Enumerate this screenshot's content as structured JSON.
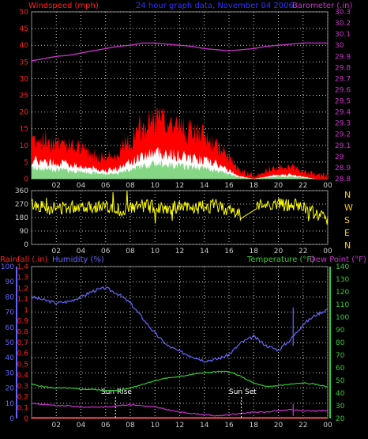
{
  "colors": {
    "background": "#000000",
    "grid": "#cccccc",
    "windspeed": "#ff2020",
    "gust_fill": "#ff0000",
    "avg_fill": "#ffffff",
    "windspeed_core": "#66cc66",
    "barometer": "#cc33cc",
    "title": "#3333ff",
    "direction": "#ffff00",
    "rainfall": "#ff2020",
    "humidity": "#6666ff",
    "temperature": "#33cc33",
    "dewpoint": "#cc33cc",
    "compass": "#ffcc00",
    "sun_marker": "#ffffff"
  },
  "header": {
    "windspeed_label": "Windspeed (mph)",
    "title": "24 hour graph data, November 04 2006",
    "barometer_label": "Barometer (.in)"
  },
  "lower_header": {
    "rainfall_label": "Rainfall (.in)",
    "humidity_label": "Humidity (%)",
    "temperature_label": "Temperature (°F)",
    "dewpoint_label": "Dew Point (°F)"
  },
  "compass": [
    "N",
    "W",
    "S",
    "E",
    "N"
  ],
  "markers": {
    "sunrise": "Sun Rise",
    "sunset": "Sun Set"
  },
  "chart_data": [
    {
      "type": "area",
      "name": "wind-barometer",
      "x_ticks": [
        "02",
        "04",
        "06",
        "08",
        "10",
        "12",
        "14",
        "16",
        "18",
        "20",
        "22",
        "00"
      ],
      "y_left_ticks": [
        "0",
        "5",
        "10",
        "15",
        "20",
        "25",
        "30",
        "35",
        "40",
        "45",
        "50"
      ],
      "y_left_range": [
        0,
        50
      ],
      "y_right_ticks": [
        "28.8",
        "28.9",
        "29",
        "29.1",
        "29.2",
        "29.3",
        "29.4",
        "29.5",
        "29.6",
        "29.7",
        "29.8",
        "29.9",
        "30",
        "30.1",
        "30.2",
        "30.3"
      ],
      "y_right_range": [
        28.8,
        30.3
      ],
      "x_range_hours": [
        0,
        24
      ],
      "series": [
        {
          "name": "Windspeed (mph)",
          "x": [
            0,
            1,
            2,
            3,
            4,
            5,
            6,
            7,
            8,
            9,
            10,
            11,
            12,
            13,
            14,
            15,
            16,
            17,
            18,
            19,
            20,
            21,
            22,
            23,
            24
          ],
          "values": [
            9,
            8,
            8,
            7,
            6,
            5,
            4,
            5,
            8,
            11,
            13,
            12,
            11,
            10,
            9,
            7,
            4,
            1,
            0,
            1,
            2,
            2,
            1,
            0,
            0
          ]
        },
        {
          "name": "Barometer (.in)",
          "x": [
            0,
            1,
            2,
            3,
            4,
            5,
            6,
            7,
            8,
            9,
            10,
            11,
            12,
            13,
            14,
            15,
            16,
            17,
            18,
            19,
            20,
            21,
            22,
            23,
            24
          ],
          "values": [
            29.86,
            29.88,
            29.9,
            29.91,
            29.93,
            29.95,
            29.97,
            29.99,
            30.0,
            30.02,
            30.02,
            30.01,
            30.0,
            29.99,
            29.97,
            29.96,
            29.95,
            29.96,
            29.97,
            29.99,
            30.0,
            30.01,
            30.02,
            30.02,
            30.02
          ]
        }
      ]
    },
    {
      "type": "scatter",
      "name": "wind-direction",
      "x_ticks": [
        "02",
        "04",
        "06",
        "08",
        "10",
        "12",
        "14",
        "16",
        "18",
        "20",
        "22",
        "00"
      ],
      "y_ticks": [
        "0",
        "90",
        "180",
        "270",
        "360"
      ],
      "y_range": [
        0,
        360
      ],
      "series": [
        {
          "name": "Wind Direction",
          "x": [
            0,
            1,
            2,
            3,
            4,
            5,
            6,
            7,
            8,
            9,
            10,
            11,
            12,
            13,
            14,
            15,
            16,
            17,
            18,
            19,
            20,
            21,
            22,
            23,
            24
          ],
          "values": [
            270,
            250,
            240,
            250,
            260,
            255,
            250,
            230,
            240,
            260,
            250,
            245,
            250,
            240,
            250,
            260,
            230,
            200,
            250,
            270,
            270,
            260,
            250,
            200,
            180
          ]
        }
      ]
    },
    {
      "type": "line",
      "name": "rain-humidity-temp",
      "x_ticks": [
        "02",
        "04",
        "06",
        "08",
        "10",
        "12",
        "14",
        "16",
        "18",
        "20",
        "22",
        "00"
      ],
      "y_left1_ticks": [
        "0",
        "0.1",
        "0.2",
        "0.3",
        "0.4",
        "0.5",
        "0.6",
        "0.7",
        "0.8",
        "0.9",
        "1",
        "1.1",
        "1.2",
        "1.3",
        "1.4"
      ],
      "y_left2_ticks": [
        "0",
        "10",
        "20",
        "30",
        "40",
        "50",
        "60",
        "70",
        "80",
        "90",
        "100"
      ],
      "y_right_ticks": [
        "20",
        "30",
        "40",
        "50",
        "60",
        "70",
        "80",
        "90",
        "100",
        "110",
        "120",
        "130",
        "140"
      ],
      "y_humidity_range": [
        0,
        100
      ],
      "y_temp_range": [
        20,
        140
      ],
      "series": [
        {
          "name": "Humidity (%)",
          "x": [
            0,
            1,
            2,
            3,
            4,
            5,
            6,
            7,
            8,
            9,
            10,
            11,
            12,
            13,
            14,
            15,
            16,
            17,
            18,
            19,
            20,
            21,
            22,
            23,
            24
          ],
          "values": [
            80,
            78,
            76,
            77,
            80,
            84,
            86,
            82,
            76,
            66,
            56,
            48,
            44,
            41,
            38,
            39,
            42,
            50,
            54,
            48,
            45,
            52,
            62,
            68,
            72
          ]
        },
        {
          "name": "Temperature (°F)",
          "x": [
            0,
            1,
            2,
            3,
            4,
            5,
            6,
            7,
            8,
            9,
            10,
            11,
            12,
            13,
            14,
            15,
            16,
            17,
            18,
            19,
            20,
            21,
            22,
            23,
            24
          ],
          "values": [
            47,
            45,
            44,
            44,
            43,
            43,
            42,
            42,
            44,
            47,
            50,
            52,
            53,
            55,
            56,
            57,
            57,
            53,
            48,
            45,
            46,
            47,
            48,
            47,
            45
          ]
        },
        {
          "name": "Dew Point (°F)",
          "x": [
            0,
            1,
            2,
            3,
            4,
            5,
            6,
            7,
            8,
            9,
            10,
            11,
            12,
            13,
            14,
            15,
            16,
            17,
            18,
            19,
            20,
            21,
            22,
            23,
            24
          ],
          "values": [
            32,
            31,
            30,
            30,
            29,
            29,
            29,
            30,
            31,
            30,
            29,
            27,
            25,
            24,
            23,
            22,
            23,
            24,
            25,
            25,
            26,
            27,
            26,
            26,
            26
          ]
        },
        {
          "name": "Rainfall (.in)",
          "x": [
            0,
            24
          ],
          "values": [
            0,
            0
          ]
        }
      ]
    }
  ]
}
